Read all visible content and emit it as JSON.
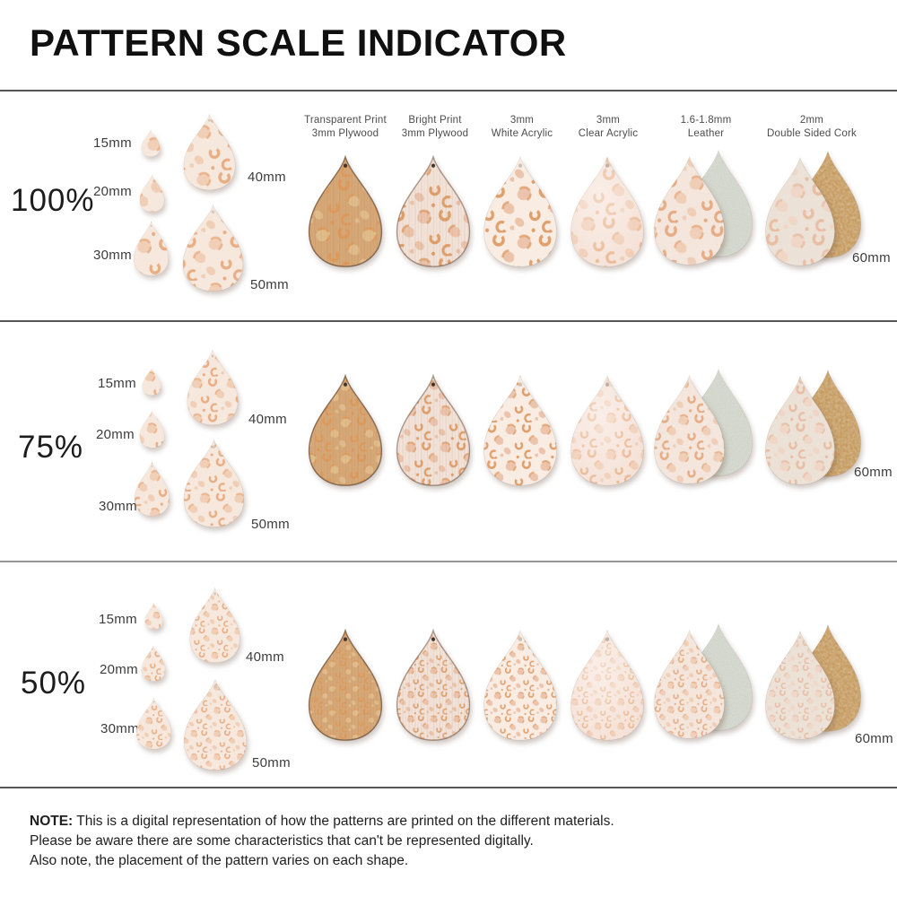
{
  "title": "PATTERN SCALE INDICATOR",
  "column_headers": [
    {
      "line1": "Transparent Print",
      "line2": "3mm Plywood"
    },
    {
      "line1": "Bright Print",
      "line2": "3mm Plywood"
    },
    {
      "line1": "3mm",
      "line2": "White Acrylic"
    },
    {
      "line1": "3mm",
      "line2": "Clear Acrylic"
    },
    {
      "line1": "1.6-1.8mm",
      "line2": "Leather"
    },
    {
      "line1": "2mm",
      "line2": "Double Sided Cork"
    }
  ],
  "rows": [
    {
      "scale_label": "100%",
      "sizes": [
        "15mm",
        "20mm",
        "30mm",
        "40mm",
        "50mm",
        "60mm"
      ]
    },
    {
      "scale_label": "75%",
      "sizes": [
        "15mm",
        "20mm",
        "30mm",
        "40mm",
        "50mm",
        "60mm"
      ]
    },
    {
      "scale_label": "50%",
      "sizes": [
        "15mm",
        "20mm",
        "30mm",
        "40mm",
        "50mm",
        "60mm"
      ]
    }
  ],
  "note": {
    "label": "NOTE:",
    "line1": "This is a digital representation of how the patterns are printed on the different materials.",
    "line2": "Please be aware there are some characteristics that can't be represented digitally.",
    "line3": "Also note, the placement of the pattern varies on each shape."
  },
  "colors": {
    "text_dark": "#101010",
    "text_gray": "#4c4c4c",
    "divider": "#555555",
    "demo_base": "#f7e8de",
    "demo_spot": "#e8ae84",
    "demo_spot_light": "#f0cfb6",
    "wood_base": "#d6a878",
    "wood_spot": "#df9a5c",
    "wood_spot_light": "#e2bd8c",
    "bright_base": "#f2e2d8",
    "print_spot": "#e0a06c",
    "print_spot_light": "#ecc3ab",
    "white_acrylic_base": "#f8ece3",
    "clear_acrylic_base": "#f5e1d6",
    "clear_spot": "#e9b68f",
    "clear_spot_light": "#f0ccb4",
    "leather_base": "#f3e3d8",
    "leather_spot": "#e2a377",
    "leather_spot_light": "#eec8ae",
    "suede_back": "#c5cabc",
    "cork_front_base": "#ebdfd3",
    "cork_spot": "#e6b99e",
    "cork_spot_light": "#eed3c2",
    "cork_back": "#c28f4b"
  }
}
